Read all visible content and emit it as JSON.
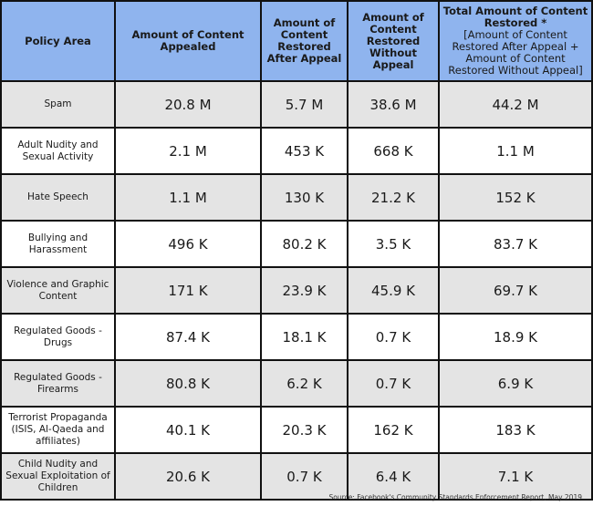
{
  "headers": {
    "policy_area": "Policy Area",
    "appealed": "Amount of Content Appealed",
    "restored_after_appeal": "Amount of Content Restored After Appeal",
    "restored_without_appeal": "Amount of Content Restored Without Appeal",
    "total_restored": "Total Amount of Content Restored *",
    "total_restored_note": "[Amount of Content Restored After Appeal + Amount of Content Restored Without Appeal]"
  },
  "rows": [
    {
      "area": "Spam",
      "appealed": "20.8 M",
      "after": "5.7 M",
      "without": "38.6 M",
      "total": "44.2 M"
    },
    {
      "area": "Adult Nudity and Sexual Activity",
      "appealed": "2.1 M",
      "after": "453 K",
      "without": "668 K",
      "total": "1.1 M"
    },
    {
      "area": "Hate Speech",
      "appealed": "1.1 M",
      "after": "130 K",
      "without": "21.2 K",
      "total": "152 K"
    },
    {
      "area": "Bullying and Harassment",
      "appealed": "496 K",
      "after": "80.2 K",
      "without": "3.5 K",
      "total": "83.7 K"
    },
    {
      "area": "Violence and Graphic Content",
      "appealed": "171 K",
      "after": "23.9 K",
      "without": "45.9 K",
      "total": "69.7 K"
    },
    {
      "area": "Regulated Goods - Drugs",
      "appealed": "87.4 K",
      "after": "18.1 K",
      "without": "0.7 K",
      "total": "18.9 K"
    },
    {
      "area": "Regulated Goods - Firearms",
      "appealed": "80.8 K",
      "after": "6.2 K",
      "without": "0.7 K",
      "total": "6.9 K"
    },
    {
      "area": "Terrorist Propaganda (ISIS, Al-Qaeda and affiliates)",
      "appealed": "40.1 K",
      "after": "20.3 K",
      "without": "162 K",
      "total": "183 K"
    },
    {
      "area": "Child Nudity and Sexual Exploitation of Children",
      "appealed": "20.6 K",
      "after": "0.7 K",
      "without": "6.4 K",
      "total": "7.1 K"
    }
  ],
  "source": "Source: Facebook's Community Standards Enforcement Report, May 2019",
  "colors": {
    "header_bg": "#8fb4ee",
    "shaded_row": "#e4e4e4",
    "border": "#111111"
  }
}
